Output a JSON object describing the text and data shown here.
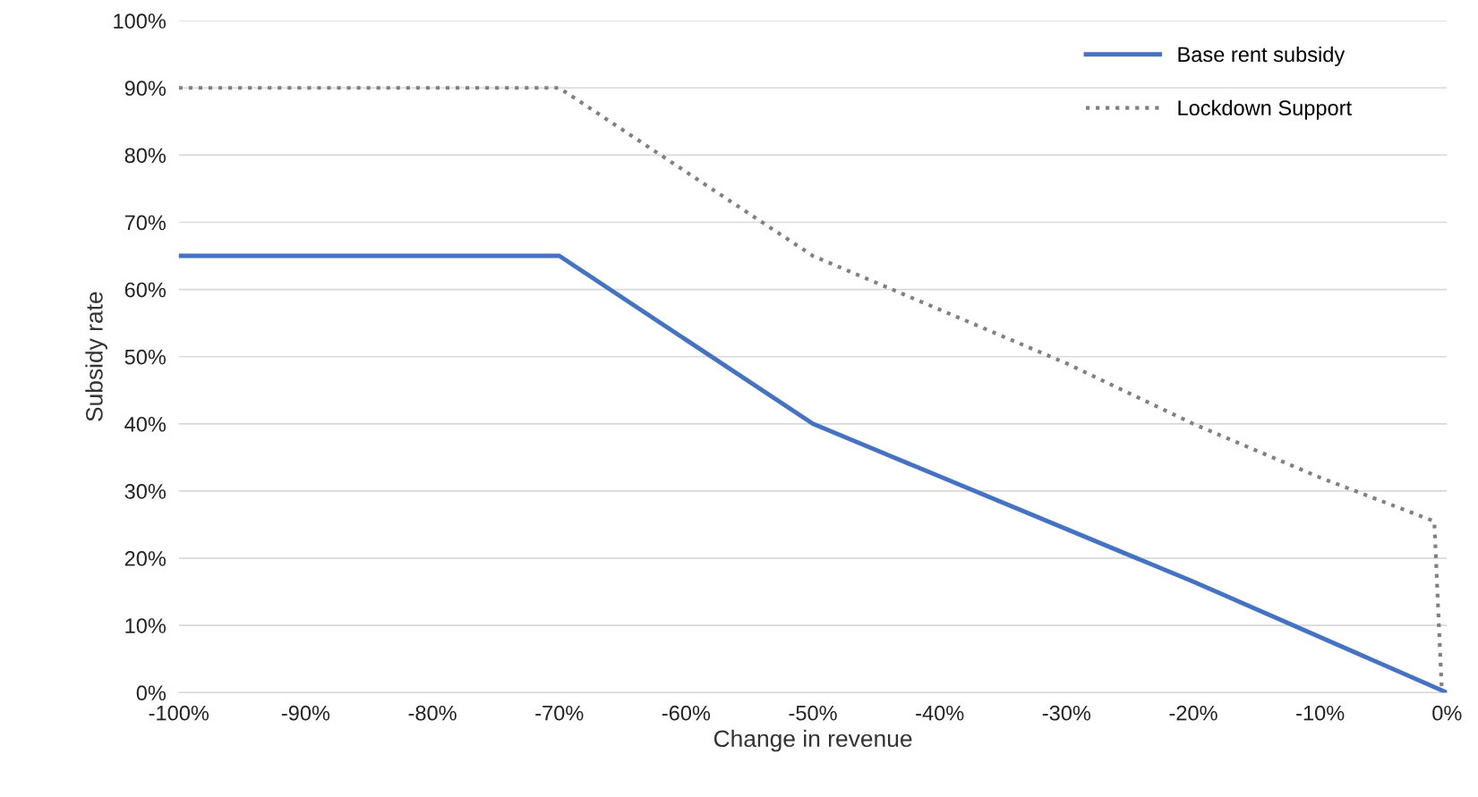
{
  "chart_data": {
    "type": "line",
    "xlabel": "Change in revenue",
    "ylabel": "Subsidy rate",
    "series": [
      {
        "name": "Base rent subsidy",
        "color": "#4472c4",
        "line_style": "solid",
        "x": [
          -100,
          -70,
          -50,
          -20,
          0
        ],
        "values": [
          65,
          65,
          40,
          16.5,
          0
        ]
      },
      {
        "name": "Lockdown Support",
        "color": "#808080",
        "line_style": "dotted",
        "x": [
          -100,
          -70,
          -50,
          -40,
          -30,
          -20,
          -10,
          -1,
          -0.4
        ],
        "values": [
          90,
          90,
          65,
          57,
          49,
          40,
          32,
          25.5,
          0
        ]
      }
    ],
    "xlim": [
      -100,
      0
    ],
    "ylim": [
      0,
      100
    ],
    "xticks": [
      {
        "value": -100,
        "label": "-100%"
      },
      {
        "value": -90,
        "label": "-90%"
      },
      {
        "value": -80,
        "label": "-80%"
      },
      {
        "value": -70,
        "label": "-70%"
      },
      {
        "value": -60,
        "label": "-60%"
      },
      {
        "value": -50,
        "label": "-50%"
      },
      {
        "value": -40,
        "label": "-40%"
      },
      {
        "value": -30,
        "label": "-30%"
      },
      {
        "value": -20,
        "label": "-20%"
      },
      {
        "value": -10,
        "label": "-10%"
      },
      {
        "value": 0,
        "label": "0%"
      }
    ],
    "yticks": [
      {
        "value": 0,
        "label": "0%"
      },
      {
        "value": 10,
        "label": "10%"
      },
      {
        "value": 20,
        "label": "20%"
      },
      {
        "value": 30,
        "label": "30%"
      },
      {
        "value": 40,
        "label": "40%"
      },
      {
        "value": 50,
        "label": "50%"
      },
      {
        "value": 60,
        "label": "60%"
      },
      {
        "value": 70,
        "label": "70%"
      },
      {
        "value": 80,
        "label": "80%"
      },
      {
        "value": 90,
        "label": "90%"
      },
      {
        "value": 100,
        "label": "100%"
      }
    ],
    "grid": "y",
    "legend": "top right"
  }
}
